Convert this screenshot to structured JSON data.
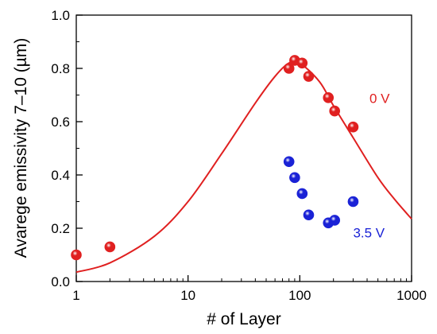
{
  "chart_data": {
    "type": "scatter",
    "xlabel": "# of Layer",
    "ylabel": "Avarege emissivity 7–10 (µm)",
    "xscale": "log",
    "xlim": [
      1,
      1000
    ],
    "ylim": [
      0.0,
      1.0
    ],
    "x_ticks": [
      1,
      10,
      100,
      1000
    ],
    "x_tick_labels": [
      "1",
      "10",
      "100",
      "1000"
    ],
    "y_ticks": [
      0.0,
      0.2,
      0.4,
      0.6,
      0.8,
      1.0
    ],
    "y_tick_labels": [
      "0.0",
      "0.2",
      "0.4",
      "0.6",
      "0.8",
      "1.0"
    ],
    "grid": false,
    "series": [
      {
        "name": "0 V",
        "kind": "points",
        "color": "#e02020",
        "x": [
          1,
          2,
          80,
          90,
          105,
          120,
          180,
          205,
          300
        ],
        "y": [
          0.1,
          0.13,
          0.8,
          0.83,
          0.82,
          0.77,
          0.69,
          0.64,
          0.58
        ]
      },
      {
        "name": "3.5 V",
        "kind": "points",
        "color": "#1a22d6",
        "x": [
          80,
          90,
          105,
          120,
          180,
          205,
          300
        ],
        "y": [
          0.45,
          0.39,
          0.33,
          0.25,
          0.22,
          0.23,
          0.3
        ]
      },
      {
        "name": "fit",
        "kind": "line",
        "color": "#e02020",
        "x": [
          1,
          2,
          5,
          10,
          20,
          40,
          60,
          80,
          100,
          150,
          200,
          300,
          500,
          700,
          1000
        ],
        "y": [
          0.035,
          0.07,
          0.17,
          0.3,
          0.48,
          0.67,
          0.77,
          0.82,
          0.82,
          0.75,
          0.66,
          0.54,
          0.39,
          0.31,
          0.235
        ]
      }
    ],
    "annotations": [
      {
        "text": "0 V",
        "x": 420,
        "y": 0.67,
        "color": "#e02020"
      },
      {
        "text": "3.5 V",
        "x": 300,
        "y": 0.165,
        "color": "#1a22d6"
      }
    ]
  }
}
